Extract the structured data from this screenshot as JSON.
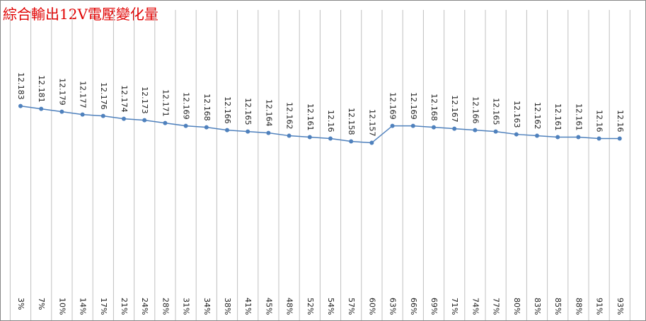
{
  "chart_data": {
    "type": "line",
    "title": "綜合輸出12V電壓變化量",
    "categories": [
      "3%",
      "7%",
      "10%",
      "14%",
      "17%",
      "21%",
      "24%",
      "28%",
      "31%",
      "34%",
      "38%",
      "41%",
      "45%",
      "48%",
      "52%",
      "54%",
      "57%",
      "60%",
      "63%",
      "66%",
      "69%",
      "71%",
      "74%",
      "77%",
      "80%",
      "83%",
      "85%",
      "88%",
      "91%",
      "93%"
    ],
    "values": [
      12.183,
      12.181,
      12.179,
      12.177,
      12.176,
      12.174,
      12.173,
      12.171,
      12.169,
      12.168,
      12.166,
      12.165,
      12.164,
      12.162,
      12.161,
      12.16,
      12.158,
      12.157,
      12.169,
      12.169,
      12.168,
      12.167,
      12.166,
      12.165,
      12.163,
      12.162,
      12.161,
      12.161,
      12.16,
      12.16
    ],
    "color": "#4f81bd",
    "ylim": [
      12.05,
      12.25
    ],
    "data_labels": true
  }
}
